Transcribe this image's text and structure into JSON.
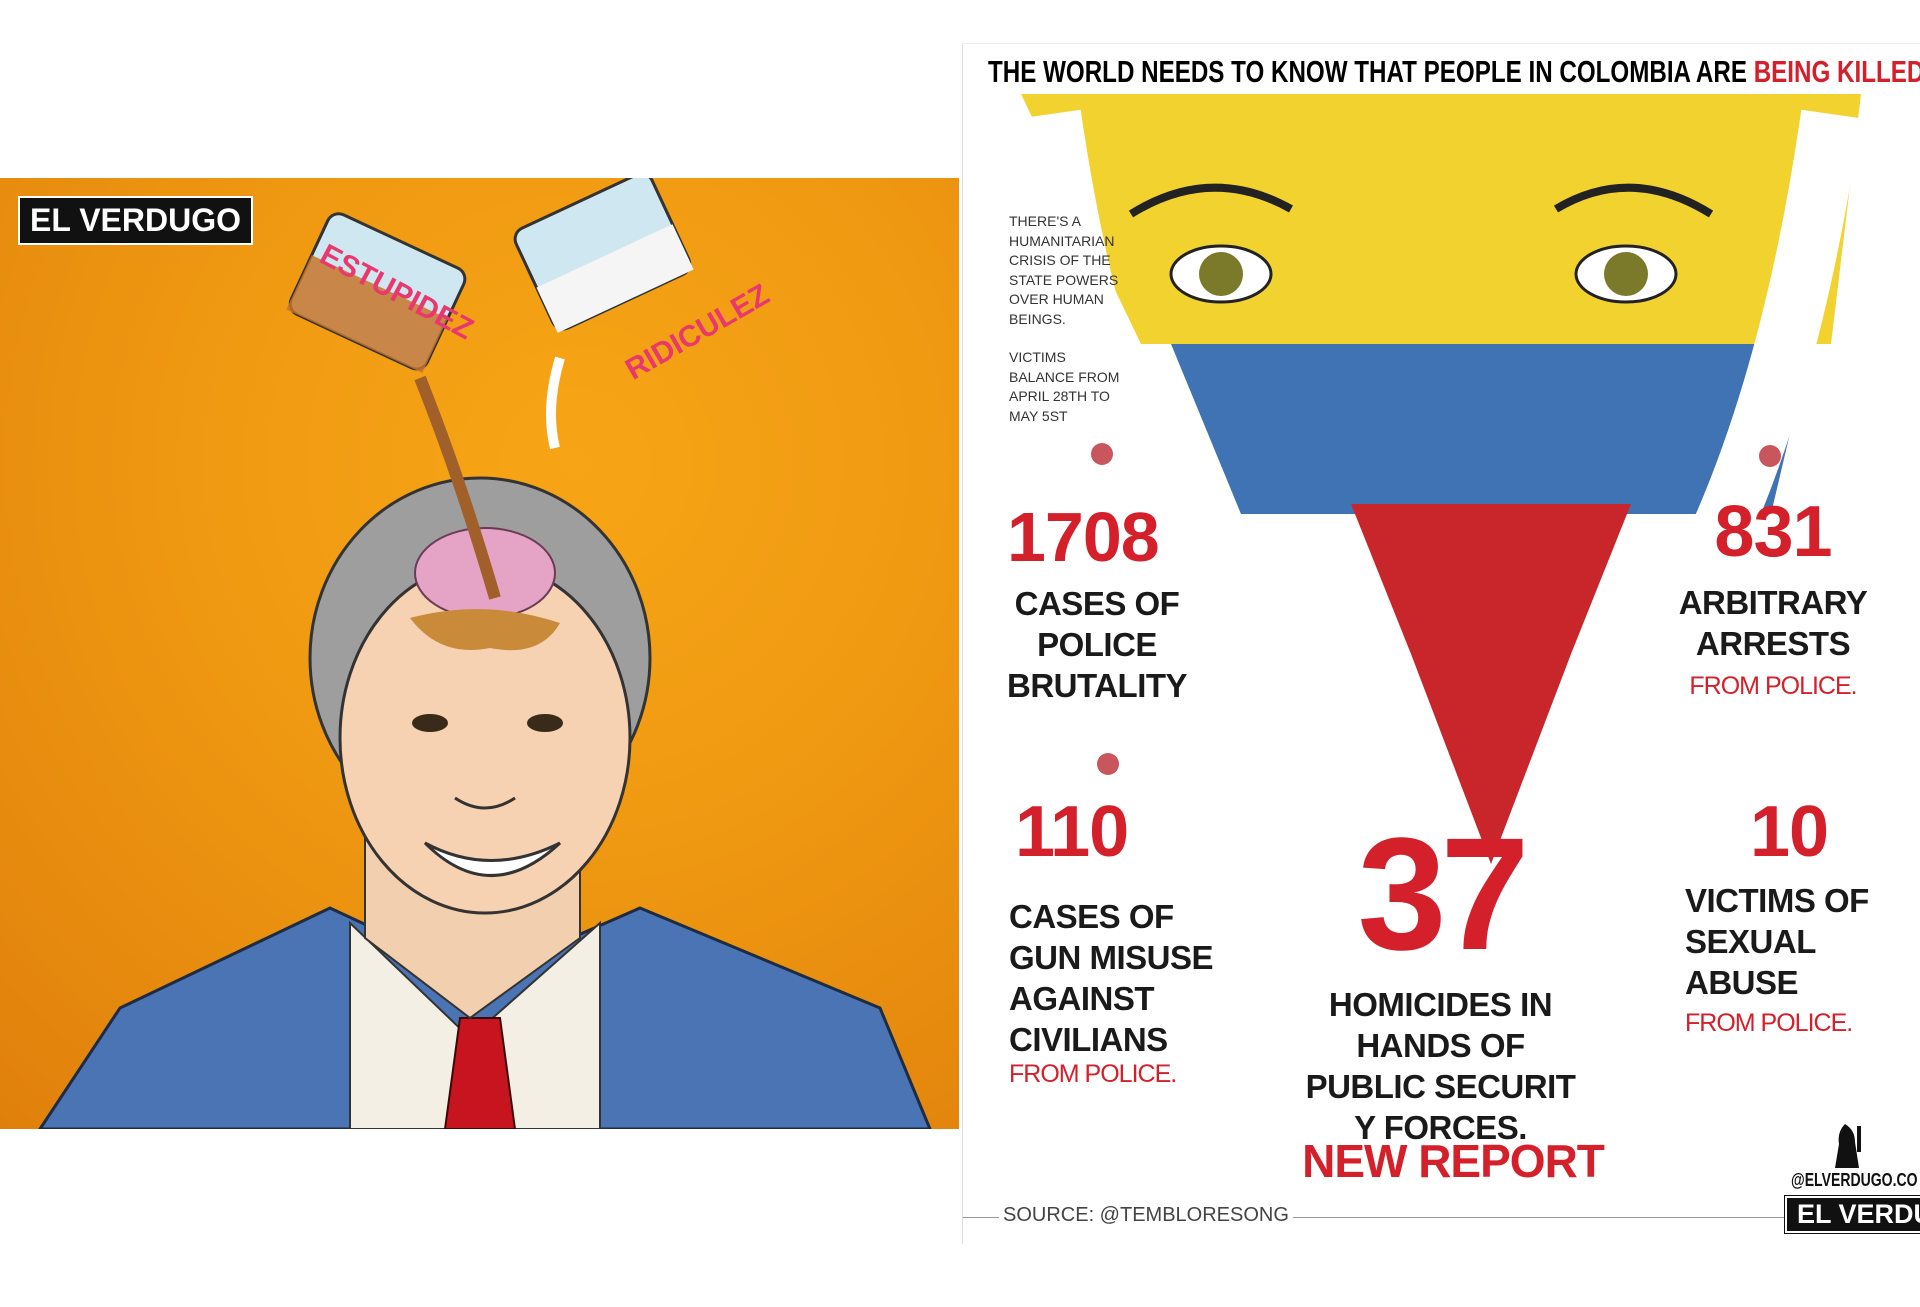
{
  "left_cartoon": {
    "brand": "EL VERDUGO",
    "glass_left_label": "ESTUPIDEZ",
    "glass_right_label": "RIDICULEZ",
    "background_color": "#f09a12"
  },
  "right_infographic": {
    "headline": "THE WORLD NEEDS TO KNOW THAT PEOPLE IN COLOMBIA ARE",
    "headline_highlight": "BEING KILLED BY POLICE.",
    "intro_lines": [
      "THERE'S A",
      "HUMANITARIAN",
      "CRISIS OF THE",
      "STATE POWERS",
      "OVER HUMAN",
      "BEINGS."
    ],
    "period_lines": [
      "VICTIMS",
      "BALANCE FROM",
      "APRIL 28TH TO",
      "MAY 5ST"
    ],
    "stats": [
      {
        "value": "1708",
        "label_lines": [
          "CASES OF",
          "POLICE",
          "BRUTALITY"
        ],
        "suffix": ""
      },
      {
        "value": "831",
        "label_lines": [
          "ARBITRARY",
          "ARRESTS"
        ],
        "suffix": "FROM POLICE."
      },
      {
        "value": "110",
        "label_lines": [
          "CASES OF",
          "GUN MISUSE",
          "AGAINST",
          "CIVILIANS"
        ],
        "suffix": "FROM POLICE."
      },
      {
        "value": "37",
        "label_lines": [
          "HOMICIDES IN",
          "HANDS OF",
          "PUBLIC SECURIT",
          "Y FORCES."
        ],
        "suffix": ""
      },
      {
        "value": "10",
        "label_lines": [
          "VICTIMS OF",
          "SEXUAL",
          "ABUSE"
        ],
        "suffix": "FROM POLICE."
      }
    ],
    "footer_title": "NEW REPORT",
    "source": "SOURCE: @TEMBLORESONG",
    "handle": "@ELVERDUGO.CO",
    "brand": "EL VERDUGO",
    "accent_color": "#d4202a",
    "flag_colors": [
      "#f2d22e",
      "#3f73b4",
      "#c8262b"
    ]
  }
}
